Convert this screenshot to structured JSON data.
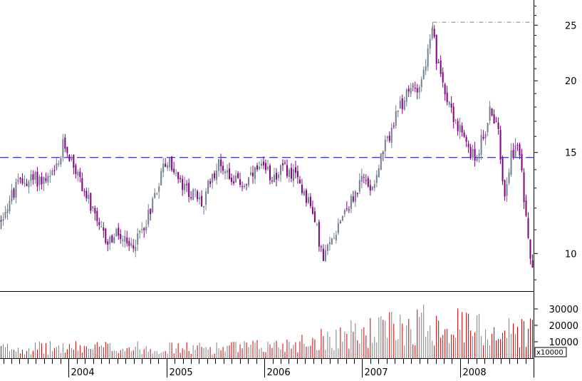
{
  "chart_data": [
    {
      "type": "candlestick",
      "scale": "log",
      "ylim": [
        8.6,
        27.5
      ],
      "xlim": [
        2003.3,
        2008.75
      ],
      "y_ticks": [
        "10",
        "15",
        "20",
        "25"
      ],
      "y_tick_values": [
        10,
        15,
        20,
        25
      ],
      "x_ticks": [
        "2004",
        "2005",
        "2006",
        "2007",
        "2008"
      ],
      "x_tick_values": [
        2004.0,
        2005.0,
        2006.0,
        2007.0,
        2008.0
      ],
      "colors": {
        "up": "#708090",
        "down": "#800080",
        "background": "#ffffff"
      },
      "reference_lines": [
        {
          "kind": "horizontal-dashed",
          "value": 14.7,
          "color": "#0000cc"
        },
        {
          "kind": "horizontal-dash-dot",
          "value": 25.3,
          "color": "#808080",
          "from_x": 2007.72
        }
      ],
      "anchors": [
        [
          2003.3,
          11.4
        ],
        [
          2003.4,
          12.4
        ],
        [
          2003.5,
          13.3
        ],
        [
          2003.65,
          13.5
        ],
        [
          2003.8,
          13.4
        ],
        [
          2003.9,
          14.2
        ],
        [
          2003.95,
          15.6
        ],
        [
          2004.05,
          14.3
        ],
        [
          2004.2,
          12.4
        ],
        [
          2004.3,
          11.1
        ],
        [
          2004.4,
          10.5
        ],
        [
          2004.5,
          10.8
        ],
        [
          2004.62,
          10.2
        ],
        [
          2004.7,
          10.6
        ],
        [
          2004.8,
          11.5
        ],
        [
          2004.9,
          13.0
        ],
        [
          2004.98,
          14.4
        ],
        [
          2005.05,
          14.3
        ],
        [
          2005.15,
          13.1
        ],
        [
          2005.3,
          12.6
        ],
        [
          2005.38,
          12.1
        ],
        [
          2005.45,
          13.6
        ],
        [
          2005.55,
          14.4
        ],
        [
          2005.7,
          13.4
        ],
        [
          2005.8,
          13.2
        ],
        [
          2005.95,
          14.0
        ],
        [
          2006.1,
          13.7
        ],
        [
          2006.2,
          14.1
        ],
        [
          2006.35,
          13.4
        ],
        [
          2006.45,
          12.4
        ],
        [
          2006.55,
          10.8
        ],
        [
          2006.6,
          9.7
        ],
        [
          2006.7,
          10.7
        ],
        [
          2006.8,
          11.8
        ],
        [
          2006.9,
          12.4
        ],
        [
          2007.0,
          13.5
        ],
        [
          2007.1,
          13.1
        ],
        [
          2007.2,
          14.8
        ],
        [
          2007.3,
          16.5
        ],
        [
          2007.4,
          18.2
        ],
        [
          2007.5,
          19.3
        ],
        [
          2007.6,
          19.9
        ],
        [
          2007.7,
          23.5
        ],
        [
          2007.72,
          24.6
        ],
        [
          2007.76,
          21.5
        ],
        [
          2007.85,
          19.3
        ],
        [
          2007.95,
          17.0
        ],
        [
          2008.05,
          15.6
        ],
        [
          2008.15,
          14.6
        ],
        [
          2008.25,
          16.3
        ],
        [
          2008.32,
          18.0
        ],
        [
          2008.4,
          15.8
        ],
        [
          2008.45,
          12.7
        ],
        [
          2008.52,
          15.0
        ],
        [
          2008.6,
          15.3
        ],
        [
          2008.65,
          12.6
        ],
        [
          2008.7,
          10.8
        ],
        [
          2008.74,
          9.2
        ]
      ]
    },
    {
      "type": "bar",
      "ylim": [
        0,
        40000
      ],
      "y_ticks": [
        "30000",
        "20000",
        "10000"
      ],
      "y_tick_values": [
        30000,
        20000,
        10000
      ],
      "unit_label": "x10000",
      "colors": {
        "up": "#808080",
        "down": "#cc0000"
      },
      "volume_levels": [
        [
          2003.3,
          6000
        ],
        [
          2004.3,
          6500
        ],
        [
          2005.3,
          6000
        ],
        [
          2006.0,
          7000
        ],
        [
          2006.4,
          10000
        ],
        [
          2006.7,
          13000
        ],
        [
          2007.0,
          15000
        ],
        [
          2007.5,
          20000
        ],
        [
          2007.75,
          22000
        ],
        [
          2008.0,
          19000
        ],
        [
          2008.4,
          16000
        ],
        [
          2008.75,
          17000
        ]
      ]
    }
  ]
}
